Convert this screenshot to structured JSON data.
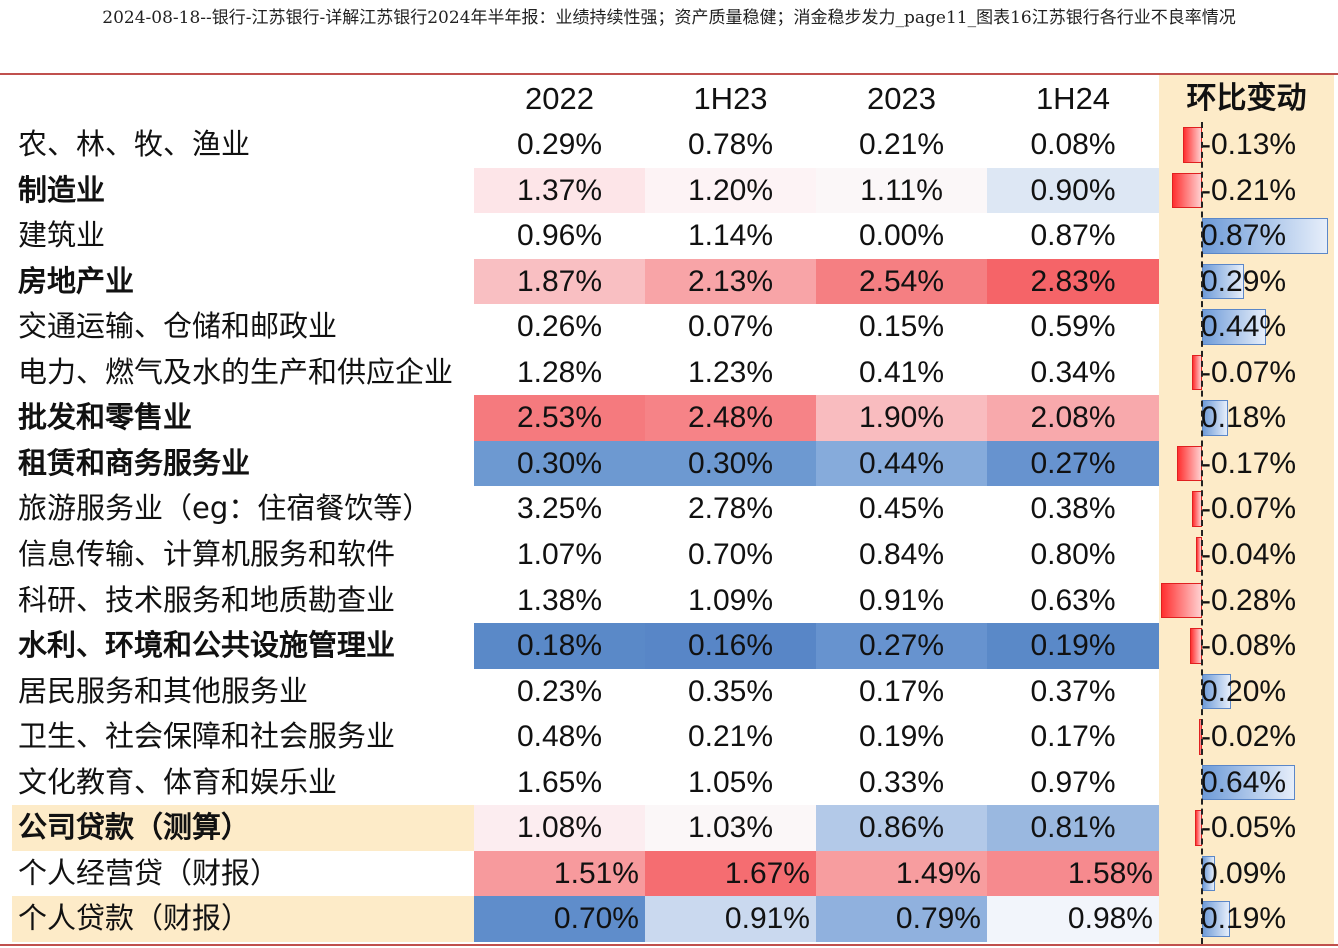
{
  "doc_title": "2024-08-18--银行-江苏银行-详解江苏银行2024年半年报：业绩持续性强；资产质量稳健；消金稳步发力_page11_图表16江苏银行各行业不良率情况",
  "chart_data": {
    "type": "table",
    "title": "图表16江苏银行各行业不良率情况",
    "columns": [
      "2022",
      "1H23",
      "2023",
      "1H24"
    ],
    "change_header": "环比变动",
    "rows": [
      {
        "label": "农、林、牧、渔业",
        "bold": false,
        "highlight": false,
        "fin": false,
        "values": [
          "0.29%",
          "0.78%",
          "0.21%",
          "0.08%"
        ],
        "colors": [
          "",
          "",
          "",
          ""
        ],
        "change": -0.13,
        "change_text": "-0.13%"
      },
      {
        "label": "制造业",
        "bold": true,
        "highlight": false,
        "fin": false,
        "values": [
          "1.37%",
          "1.20%",
          "1.11%",
          "0.90%"
        ],
        "colors": [
          "#fde5e8",
          "#fdf3f5",
          "#fbf7f8",
          "#dde7f4"
        ],
        "change": -0.21,
        "change_text": "-0.21%"
      },
      {
        "label": "建筑业",
        "bold": false,
        "highlight": false,
        "fin": false,
        "values": [
          "0.96%",
          "1.14%",
          "0.00%",
          "0.87%"
        ],
        "colors": [
          "",
          "",
          "",
          ""
        ],
        "change": 0.87,
        "change_text": "0.87%"
      },
      {
        "label": "房地产业",
        "bold": true,
        "highlight": false,
        "fin": false,
        "values": [
          "1.87%",
          "2.13%",
          "2.54%",
          "2.83%"
        ],
        "colors": [
          "#f9bfc2",
          "#f8a4a7",
          "#f57f82",
          "#f56468"
        ],
        "change": 0.29,
        "change_text": "0.29%"
      },
      {
        "label": "交通运输、仓储和邮政业",
        "bold": false,
        "highlight": false,
        "fin": false,
        "values": [
          "0.26%",
          "0.07%",
          "0.15%",
          "0.59%"
        ],
        "colors": [
          "",
          "",
          "",
          ""
        ],
        "change": 0.44,
        "change_text": "0.44%"
      },
      {
        "label": "电力、燃气及水的生产和供应企业",
        "bold": false,
        "highlight": false,
        "fin": false,
        "values": [
          "1.28%",
          "1.23%",
          "0.41%",
          "0.34%"
        ],
        "colors": [
          "",
          "",
          "",
          ""
        ],
        "change": -0.07,
        "change_text": "-0.07%"
      },
      {
        "label": "批发和零售业",
        "bold": true,
        "highlight": false,
        "fin": false,
        "values": [
          "2.53%",
          "2.48%",
          "1.90%",
          "2.08%"
        ],
        "colors": [
          "#f57a7e",
          "#f68387",
          "#f9bcbf",
          "#f8a9ac"
        ],
        "change": 0.18,
        "change_text": "0.18%"
      },
      {
        "label": "租赁和商务服务业",
        "bold": true,
        "highlight": false,
        "fin": false,
        "values": [
          "0.30%",
          "0.30%",
          "0.44%",
          "0.27%"
        ],
        "colors": [
          "#6d99d1",
          "#6d99d1",
          "#86abdb",
          "#6793cf"
        ],
        "change": -0.17,
        "change_text": "-0.17%"
      },
      {
        "label": "旅游服务业（eg：住宿餐饮等）",
        "bold": false,
        "highlight": false,
        "fin": false,
        "values": [
          "3.25%",
          "2.78%",
          "0.45%",
          "0.38%"
        ],
        "colors": [
          "",
          "",
          "",
          ""
        ],
        "change": -0.07,
        "change_text": "-0.07%"
      },
      {
        "label": "信息传输、计算机服务和软件",
        "bold": false,
        "highlight": false,
        "fin": false,
        "values": [
          "1.07%",
          "0.70%",
          "0.84%",
          "0.80%"
        ],
        "colors": [
          "",
          "",
          "",
          ""
        ],
        "change": -0.04,
        "change_text": "-0.04%"
      },
      {
        "label": "科研、技术服务和地质勘查业",
        "bold": false,
        "highlight": false,
        "fin": false,
        "values": [
          "1.38%",
          "1.09%",
          "0.91%",
          "0.63%"
        ],
        "colors": [
          "",
          "",
          "",
          ""
        ],
        "change": -0.28,
        "change_text": "-0.28%"
      },
      {
        "label": "水利、环境和公共设施管理业",
        "bold": true,
        "highlight": false,
        "fin": false,
        "values": [
          "0.18%",
          "0.16%",
          "0.27%",
          "0.19%"
        ],
        "colors": [
          "#5a89c8",
          "#5886c7",
          "#6793cf",
          "#5a89c8"
        ],
        "change": -0.08,
        "change_text": "-0.08%"
      },
      {
        "label": "居民服务和其他服务业",
        "bold": false,
        "highlight": false,
        "fin": false,
        "values": [
          "0.23%",
          "0.35%",
          "0.17%",
          "0.37%"
        ],
        "colors": [
          "",
          "",
          "",
          ""
        ],
        "change": 0.2,
        "change_text": "0.20%"
      },
      {
        "label": "卫生、社会保障和社会服务业",
        "bold": false,
        "highlight": false,
        "fin": false,
        "values": [
          "0.48%",
          "0.21%",
          "0.19%",
          "0.17%"
        ],
        "colors": [
          "",
          "",
          "",
          ""
        ],
        "change": -0.02,
        "change_text": "-0.02%"
      },
      {
        "label": "文化教育、体育和娱乐业",
        "bold": false,
        "highlight": false,
        "fin": false,
        "values": [
          "1.65%",
          "1.05%",
          "0.33%",
          "0.97%"
        ],
        "colors": [
          "",
          "",
          "",
          ""
        ],
        "change": 0.64,
        "change_text": "0.64%"
      },
      {
        "label": "公司贷款（测算）",
        "bold": true,
        "highlight": true,
        "fin": false,
        "values": [
          "1.08%",
          "1.03%",
          "0.86%",
          "0.81%"
        ],
        "colors": [
          "#fcedf0",
          "#fbf7f8",
          "#b3c9e8",
          "#9ab8e0"
        ],
        "change": -0.05,
        "change_text": "-0.05%"
      },
      {
        "label": "个人经营贷（财报）",
        "bold": false,
        "highlight": false,
        "fin": true,
        "values": [
          "1.51%",
          "1.67%",
          "1.49%",
          "1.58%"
        ],
        "colors": [
          "#f79a9d",
          "#f56d71",
          "#f79d9f",
          "#f68a8e"
        ],
        "change": 0.09,
        "change_text": "0.09%"
      },
      {
        "label": "个人贷款（财报）",
        "bold": false,
        "highlight": true,
        "fin": true,
        "values": [
          "0.70%",
          "0.91%",
          "0.79%",
          "0.98%"
        ],
        "colors": [
          "#5f8dcb",
          "#cad9ef",
          "#90b1de",
          "#f2f5fb"
        ],
        "change": 0.19,
        "change_text": "0.19%"
      }
    ]
  }
}
